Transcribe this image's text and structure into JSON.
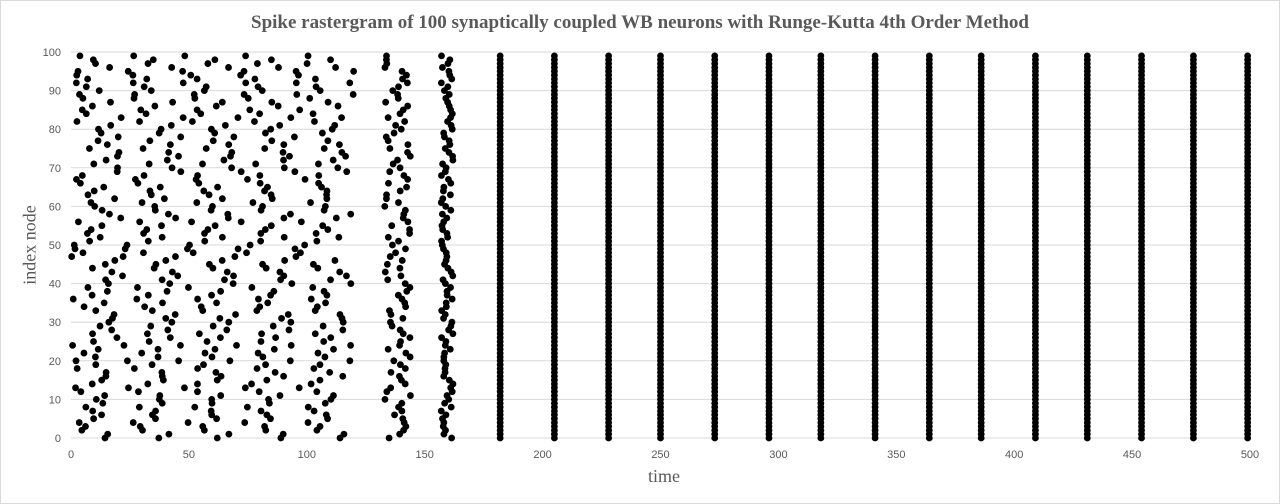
{
  "chart_data": {
    "type": "scatter",
    "title": "Spike rastergram  of 100 synaptically  coupled WB neurons  with  Runge-Kutta  4th  Order  Method",
    "xlabel": "time",
    "ylabel": "index node",
    "xlim": [
      0,
      500
    ],
    "ylim": [
      0,
      100
    ],
    "xticks": [
      0,
      50,
      100,
      150,
      200,
      250,
      300,
      350,
      400,
      450,
      500
    ],
    "yticks": [
      0,
      10,
      20,
      30,
      40,
      50,
      60,
      70,
      80,
      90,
      100
    ],
    "grid": "horizontal",
    "legend": "none",
    "marker_color": "#000000",
    "series": [
      {
        "desc_phase": "asynchronous firing before synchronization",
        "x_range": [
          0,
          165
        ],
        "points_per_neuron_approx": 8
      },
      {
        "desc_phase": "synchronized volleys, all 100 neurons fire together",
        "volley_times": [
          182,
          205,
          228,
          250,
          273,
          296,
          318,
          341,
          364,
          386,
          409,
          431,
          454,
          476,
          499
        ]
      }
    ]
  }
}
